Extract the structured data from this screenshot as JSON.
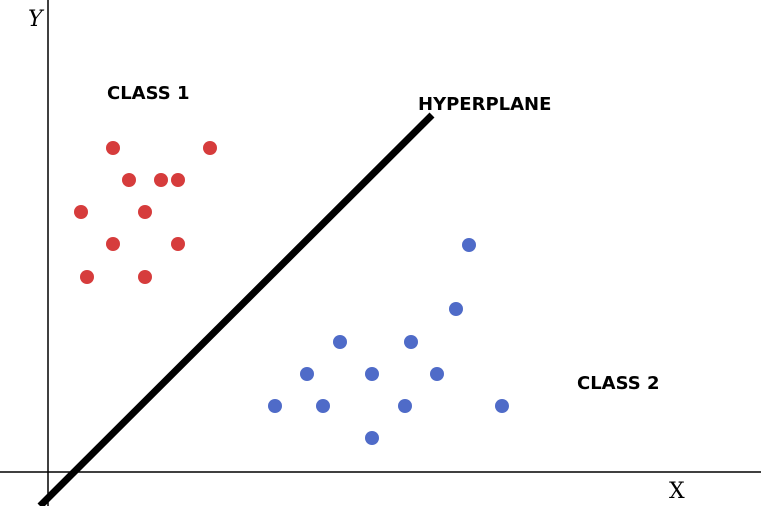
{
  "axes": {
    "y_label": "Y",
    "x_label": "X"
  },
  "labels": {
    "class_1": "CLASS 1",
    "class_2": "CLASS 2",
    "hyperplane": "HYPERPLANE"
  }
}
